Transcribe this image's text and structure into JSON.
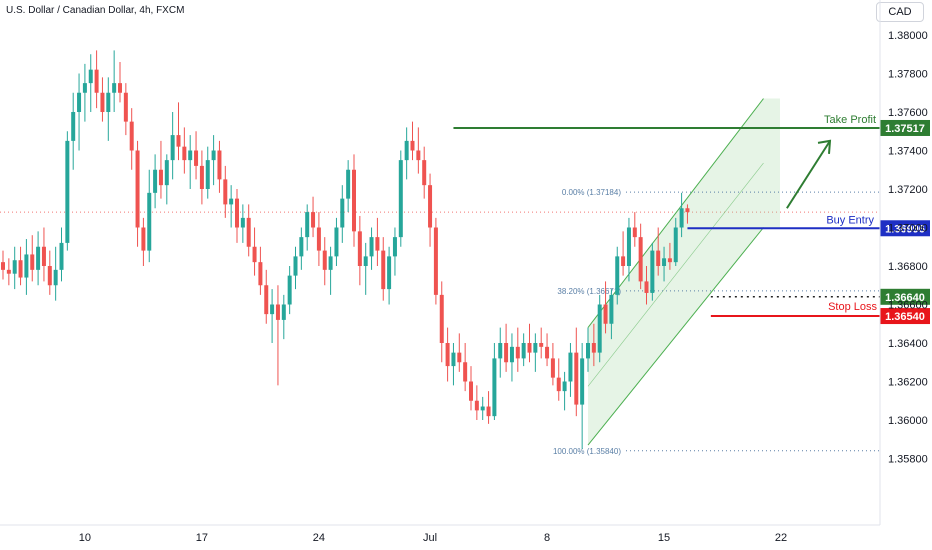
{
  "header": {
    "symbol_title": "U.S. Dollar / Canadian Dollar, 4h, FXCM",
    "currency_button": "CAD"
  },
  "colors": {
    "up": "#26a69a",
    "down": "#ef5350",
    "take_profit": "#2e7d32",
    "buy_entry": "#1e2fc4",
    "stop_loss": "#e8151b",
    "fib": "#5a7fa6"
  },
  "chart_data": {
    "type": "candlestick",
    "symbol": "U.S. Dollar / Canadian Dollar",
    "interval": "4h",
    "source": "FXCM",
    "y_ticks": [
      "1.38000",
      "1.37800",
      "1.37600",
      "1.37400",
      "1.37200",
      "1.37000",
      "1.36800",
      "1.36600",
      "1.36400",
      "1.36200",
      "1.36000",
      "1.35800"
    ],
    "ylim": [
      1.3575,
      1.3813
    ],
    "x_ticks": [
      {
        "label": "10",
        "bar": 14
      },
      {
        "label": "17",
        "bar": 34
      },
      {
        "label": "24",
        "bar": 54
      },
      {
        "label": "Jul",
        "bar": 73
      },
      {
        "label": "8",
        "bar": 93
      },
      {
        "label": "15",
        "bar": 113
      },
      {
        "label": "22",
        "bar": 133
      }
    ],
    "last_price": 1.3708,
    "candles": [
      [
        1.3682,
        1.3688,
        1.3673,
        1.3678
      ],
      [
        1.3678,
        1.3684,
        1.367,
        1.3676
      ],
      [
        1.3676,
        1.369,
        1.3668,
        1.3683
      ],
      [
        1.3683,
        1.369,
        1.367,
        1.3674
      ],
      [
        1.3674,
        1.3694,
        1.3665,
        1.3686
      ],
      [
        1.3686,
        1.3696,
        1.3672,
        1.3678
      ],
      [
        1.3678,
        1.3698,
        1.367,
        1.369
      ],
      [
        1.369,
        1.37,
        1.3672,
        1.368
      ],
      [
        1.368,
        1.3688,
        1.3665,
        1.367
      ],
      [
        1.367,
        1.369,
        1.3662,
        1.3678
      ],
      [
        1.3678,
        1.37,
        1.3672,
        1.3692
      ],
      [
        1.3692,
        1.375,
        1.3688,
        1.3745
      ],
      [
        1.3745,
        1.377,
        1.373,
        1.376
      ],
      [
        1.376,
        1.378,
        1.374,
        1.377
      ],
      [
        1.377,
        1.3785,
        1.3755,
        1.3775
      ],
      [
        1.3775,
        1.379,
        1.376,
        1.3782
      ],
      [
        1.3782,
        1.3792,
        1.3762,
        1.377
      ],
      [
        1.377,
        1.3778,
        1.3755,
        1.376
      ],
      [
        1.376,
        1.3778,
        1.3745,
        1.377
      ],
      [
        1.377,
        1.3792,
        1.376,
        1.3775
      ],
      [
        1.3775,
        1.3786,
        1.3765,
        1.377
      ],
      [
        1.377,
        1.3775,
        1.3748,
        1.3755
      ],
      [
        1.3755,
        1.3762,
        1.373,
        1.374
      ],
      [
        1.374,
        1.3745,
        1.369,
        1.37
      ],
      [
        1.37,
        1.3705,
        1.368,
        1.3688
      ],
      [
        1.3688,
        1.373,
        1.3682,
        1.3718
      ],
      [
        1.3718,
        1.3738,
        1.371,
        1.373
      ],
      [
        1.373,
        1.3745,
        1.3715,
        1.3722
      ],
      [
        1.3722,
        1.3738,
        1.3712,
        1.3735
      ],
      [
        1.3735,
        1.376,
        1.3725,
        1.3748
      ],
      [
        1.3748,
        1.3765,
        1.3735,
        1.3742
      ],
      [
        1.3742,
        1.3752,
        1.3728,
        1.3735
      ],
      [
        1.3735,
        1.3748,
        1.372,
        1.374
      ],
      [
        1.374,
        1.375,
        1.3725,
        1.3732
      ],
      [
        1.3732,
        1.374,
        1.3712,
        1.372
      ],
      [
        1.372,
        1.3742,
        1.3715,
        1.3735
      ],
      [
        1.3735,
        1.3748,
        1.3722,
        1.374
      ],
      [
        1.374,
        1.3745,
        1.3718,
        1.3725
      ],
      [
        1.3725,
        1.3732,
        1.3705,
        1.3712
      ],
      [
        1.3712,
        1.3722,
        1.37,
        1.3715
      ],
      [
        1.3715,
        1.372,
        1.3692,
        1.37
      ],
      [
        1.37,
        1.3712,
        1.3692,
        1.3705
      ],
      [
        1.3705,
        1.3712,
        1.3685,
        1.369
      ],
      [
        1.369,
        1.37,
        1.3675,
        1.3682
      ],
      [
        1.3682,
        1.369,
        1.3665,
        1.367
      ],
      [
        1.367,
        1.3678,
        1.365,
        1.3655
      ],
      [
        1.3655,
        1.3668,
        1.364,
        1.366
      ],
      [
        1.366,
        1.367,
        1.3618,
        1.3652
      ],
      [
        1.3652,
        1.3665,
        1.3642,
        1.366
      ],
      [
        1.366,
        1.368,
        1.3655,
        1.3675
      ],
      [
        1.3675,
        1.369,
        1.3668,
        1.3685
      ],
      [
        1.3685,
        1.37,
        1.3678,
        1.3695
      ],
      [
        1.3695,
        1.3712,
        1.3688,
        1.3708
      ],
      [
        1.3708,
        1.3716,
        1.3695,
        1.37
      ],
      [
        1.37,
        1.3708,
        1.368,
        1.3688
      ],
      [
        1.3688,
        1.3695,
        1.367,
        1.3678
      ],
      [
        1.3678,
        1.369,
        1.3665,
        1.3685
      ],
      [
        1.3685,
        1.3705,
        1.368,
        1.37
      ],
      [
        1.37,
        1.3722,
        1.3692,
        1.3715
      ],
      [
        1.3715,
        1.3735,
        1.3708,
        1.373
      ],
      [
        1.373,
        1.3738,
        1.369,
        1.3698
      ],
      [
        1.3698,
        1.3706,
        1.367,
        1.368
      ],
      [
        1.368,
        1.3692,
        1.3665,
        1.3685
      ],
      [
        1.3685,
        1.37,
        1.3678,
        1.3695
      ],
      [
        1.3695,
        1.3705,
        1.368,
        1.3688
      ],
      [
        1.3688,
        1.3695,
        1.3662,
        1.3668
      ],
      [
        1.3668,
        1.369,
        1.366,
        1.3685
      ],
      [
        1.3685,
        1.37,
        1.3675,
        1.3695
      ],
      [
        1.3695,
        1.374,
        1.369,
        1.3735
      ],
      [
        1.3735,
        1.3752,
        1.3725,
        1.3745
      ],
      [
        1.3745,
        1.3755,
        1.3735,
        1.374
      ],
      [
        1.374,
        1.3752,
        1.3728,
        1.3735
      ],
      [
        1.3735,
        1.3742,
        1.3715,
        1.3722
      ],
      [
        1.3722,
        1.3728,
        1.369,
        1.37
      ],
      [
        1.37,
        1.3705,
        1.366,
        1.3665
      ],
      [
        1.3665,
        1.3672,
        1.363,
        1.364
      ],
      [
        1.364,
        1.3648,
        1.362,
        1.3628
      ],
      [
        1.3628,
        1.364,
        1.3618,
        1.3635
      ],
      [
        1.3635,
        1.3645,
        1.3625,
        1.363
      ],
      [
        1.363,
        1.364,
        1.3615,
        1.362
      ],
      [
        1.362,
        1.3628,
        1.3605,
        1.361
      ],
      [
        1.361,
        1.3618,
        1.36,
        1.3605
      ],
      [
        1.3605,
        1.3612,
        1.36,
        1.3607
      ],
      [
        1.3607,
        1.3615,
        1.3598,
        1.3602
      ],
      [
        1.3602,
        1.364,
        1.36,
        1.3632
      ],
      [
        1.3632,
        1.3648,
        1.3622,
        1.364
      ],
      [
        1.364,
        1.365,
        1.3625,
        1.363
      ],
      [
        1.363,
        1.3645,
        1.362,
        1.3638
      ],
      [
        1.3638,
        1.3648,
        1.3625,
        1.3632
      ],
      [
        1.3632,
        1.3645,
        1.3628,
        1.364
      ],
      [
        1.364,
        1.365,
        1.363,
        1.3635
      ],
      [
        1.3635,
        1.3645,
        1.3625,
        1.364
      ],
      [
        1.364,
        1.3648,
        1.3632,
        1.3638
      ],
      [
        1.3638,
        1.3645,
        1.3628,
        1.3632
      ],
      [
        1.3632,
        1.364,
        1.3618,
        1.3622
      ],
      [
        1.3622,
        1.3632,
        1.361,
        1.3615
      ],
      [
        1.3615,
        1.3625,
        1.3605,
        1.362
      ],
      [
        1.362,
        1.364,
        1.3612,
        1.3635
      ],
      [
        1.3635,
        1.3648,
        1.3602,
        1.3608
      ],
      [
        1.3608,
        1.364,
        1.3585,
        1.3632
      ],
      [
        1.3632,
        1.3648,
        1.3625,
        1.364
      ],
      [
        1.364,
        1.365,
        1.3628,
        1.3635
      ],
      [
        1.3635,
        1.3665,
        1.363,
        1.366
      ],
      [
        1.366,
        1.3672,
        1.3645,
        1.365
      ],
      [
        1.365,
        1.3668,
        1.3642,
        1.3665
      ],
      [
        1.3665,
        1.369,
        1.366,
        1.3685
      ],
      [
        1.3685,
        1.3698,
        1.3675,
        1.368
      ],
      [
        1.368,
        1.3705,
        1.3672,
        1.37
      ],
      [
        1.37,
        1.3708,
        1.369,
        1.3695
      ],
      [
        1.3695,
        1.3702,
        1.3668,
        1.3672
      ],
      [
        1.3672,
        1.368,
        1.366,
        1.3666
      ],
      [
        1.3666,
        1.3692,
        1.3662,
        1.3688
      ],
      [
        1.3688,
        1.37,
        1.3675,
        1.368
      ],
      [
        1.368,
        1.369,
        1.3672,
        1.3684
      ],
      [
        1.3684,
        1.3692,
        1.3678,
        1.3682
      ],
      [
        1.3682,
        1.3705,
        1.368,
        1.37
      ],
      [
        1.37,
        1.3718,
        1.3695,
        1.371
      ],
      [
        1.371,
        1.3712,
        1.3702,
        1.3708
      ]
    ],
    "fib_levels": [
      {
        "label": "0.00% (1.37184)",
        "price": 1.37184
      },
      {
        "label": "38.20% (1.36671)",
        "price": 1.36671
      },
      {
        "label": "100.00% (1.35840)",
        "price": 1.3584
      }
    ],
    "levels": [
      {
        "name": "Take Profit",
        "price_label": "1.37517",
        "price": 1.37517
      },
      {
        "name": "Buy Entry",
        "price_label": "1.36996",
        "price": 1.36996
      },
      {
        "name": "",
        "price_label": "1.36640",
        "price": 1.3664
      },
      {
        "name": "Stop Loss",
        "price_label": "1.36540",
        "price": 1.3654
      }
    ],
    "channel": {
      "lower_start": [
        100,
        1.3587
      ],
      "lower_end": [
        130,
        1.37
      ],
      "upper_start": [
        100,
        1.3648
      ],
      "upper_end": [
        130,
        1.3767
      ]
    }
  }
}
